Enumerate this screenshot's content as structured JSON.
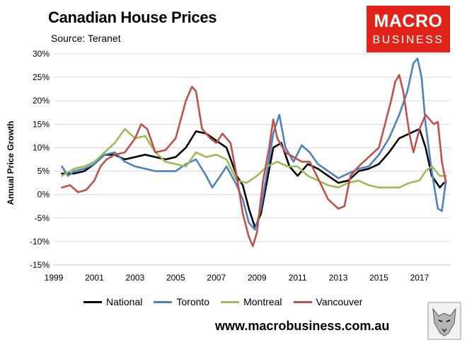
{
  "header": {
    "title": "Canadian House Prices",
    "subtitle": "Source: Teranet"
  },
  "brand": {
    "line1": "MACRO",
    "line2": "BUSINESS",
    "color": "#e2231a",
    "url": "www.macrobusiness.com.au"
  },
  "chart_data": {
    "type": "line",
    "title": "Canadian House Prices",
    "subtitle": "Source: Teranet",
    "xlabel": "",
    "ylabel": "Annual Price Growth",
    "xlim": [
      1999,
      2018.5
    ],
    "ylim": [
      -15,
      30
    ],
    "x_ticks": [
      1999,
      2001,
      2003,
      2005,
      2007,
      2009,
      2011,
      2013,
      2015,
      2017
    ],
    "y_ticks": [
      -15,
      -10,
      -5,
      0,
      5,
      10,
      15,
      20,
      25,
      30
    ],
    "y_tick_labels": [
      "-15%",
      "-10%",
      "-5%",
      "0%",
      "5%",
      "10%",
      "15%",
      "20%",
      "25%",
      "30%"
    ],
    "grid": "horizontal",
    "legend_position": "bottom",
    "series": [
      {
        "name": "National",
        "color": "#000000",
        "x": [
          1999.4,
          2000,
          2000.5,
          2001,
          2001.5,
          2002,
          2002.5,
          2003,
          2003.5,
          2004,
          2004.5,
          2005,
          2005.5,
          2006,
          2006.5,
          2007,
          2007.5,
          2008,
          2008.3,
          2008.6,
          2008.9,
          2009.2,
          2009.5,
          2009.8,
          2010.2,
          2010.6,
          2011,
          2011.5,
          2012,
          2012.5,
          2013,
          2013.5,
          2014,
          2014.5,
          2015,
          2015.5,
          2016,
          2016.5,
          2017,
          2017.3,
          2017.6,
          2018,
          2018.2
        ],
        "y": [
          4.5,
          4.5,
          5,
          6.5,
          8.5,
          8.5,
          7.5,
          8,
          8.5,
          8,
          7.5,
          8,
          10,
          13.5,
          13,
          11.5,
          10,
          4,
          2,
          -3,
          -7,
          -4,
          3,
          10,
          11,
          6,
          4,
          6.5,
          5.5,
          4,
          2.5,
          3,
          5,
          5.5,
          6.5,
          9,
          12,
          13,
          14,
          10,
          4,
          1.5,
          2.5
        ]
      },
      {
        "name": "Toronto",
        "color": "#4f81bd",
        "x": [
          1999.4,
          1999.7,
          2000,
          2000.5,
          2001,
          2001.5,
          2002,
          2002.5,
          2003,
          2003.5,
          2004,
          2004.5,
          2005,
          2005.5,
          2006,
          2006.5,
          2006.8,
          2007.2,
          2007.5,
          2008,
          2008.3,
          2008.6,
          2008.9,
          2009.2,
          2009.5,
          2009.8,
          2010.1,
          2010.4,
          2010.8,
          2011.2,
          2011.6,
          2012,
          2012.5,
          2013,
          2013.5,
          2014,
          2014.5,
          2015,
          2015.5,
          2016,
          2016.4,
          2016.7,
          2016.9,
          2017.1,
          2017.3,
          2017.6,
          2017.9,
          2018.1,
          2018.3
        ],
        "y": [
          6,
          4,
          5,
          5.5,
          6.5,
          8.5,
          9,
          7,
          6,
          5.5,
          5,
          5,
          5,
          6.5,
          7.5,
          4,
          1.5,
          4,
          6,
          2,
          -1,
          -6,
          -7.5,
          -3,
          5,
          13,
          17,
          10,
          7,
          10.5,
          9,
          6.5,
          5,
          3.5,
          4.5,
          5.5,
          6,
          8.5,
          12,
          17,
          22,
          28,
          29,
          25,
          15,
          5,
          -3,
          -3.5,
          3
        ]
      },
      {
        "name": "Montreal",
        "color": "#9bbb59",
        "x": [
          1999.4,
          2000,
          2000.5,
          2001,
          2001.5,
          2002,
          2002.5,
          2003,
          2003.5,
          2004,
          2004.5,
          2005,
          2005.5,
          2006,
          2006.5,
          2007,
          2007.5,
          2008,
          2008.5,
          2009,
          2009.5,
          2010,
          2010.5,
          2011,
          2011.5,
          2012,
          2012.5,
          2013,
          2013.5,
          2014,
          2014.5,
          2015,
          2015.5,
          2016,
          2016.5,
          2017,
          2017.3,
          2017.6,
          2018,
          2018.3
        ],
        "y": [
          4,
          5.5,
          6,
          7,
          9,
          11,
          14,
          12,
          12.5,
          9,
          7,
          6.5,
          6,
          9,
          8,
          8.5,
          7.5,
          3,
          2.5,
          4,
          6,
          7,
          6,
          6,
          4,
          3,
          2,
          1.5,
          2.5,
          3,
          2,
          1.5,
          1.5,
          1.5,
          2.5,
          3,
          5,
          6,
          4,
          4
        ]
      },
      {
        "name": "Vancouver",
        "color": "#c0504d",
        "x": [
          1999.4,
          1999.8,
          2000.2,
          2000.6,
          2001,
          2001.3,
          2001.6,
          2002,
          2002.5,
          2003,
          2003.3,
          2003.6,
          2004,
          2004.5,
          2005,
          2005.5,
          2005.8,
          2006,
          2006.3,
          2006.7,
          2007,
          2007.3,
          2007.7,
          2008,
          2008.3,
          2008.6,
          2008.8,
          2009,
          2009.3,
          2009.6,
          2009.8,
          2010,
          2010.4,
          2010.8,
          2011.2,
          2011.6,
          2012,
          2012.5,
          2013,
          2013.3,
          2013.6,
          2014,
          2014.5,
          2015,
          2015.3,
          2015.6,
          2015.8,
          2016,
          2016.2,
          2016.5,
          2016.7,
          2017,
          2017.3,
          2017.5,
          2017.7,
          2017.9,
          2018.1,
          2018.3
        ],
        "y": [
          1.5,
          2,
          0.5,
          1,
          3,
          6,
          7.5,
          8.5,
          9,
          12,
          15,
          14,
          9,
          9.5,
          12,
          20,
          23,
          22,
          14,
          12,
          11,
          13,
          11,
          4,
          -4,
          -9,
          -11,
          -8,
          3,
          10,
          16,
          12,
          9,
          8,
          7,
          7,
          3.5,
          -1,
          -3,
          -2.5,
          4,
          6,
          8,
          10,
          15,
          20,
          24,
          25.5,
          22,
          13,
          9,
          14,
          17,
          16,
          15,
          15.5,
          7,
          2.5
        ]
      }
    ]
  }
}
